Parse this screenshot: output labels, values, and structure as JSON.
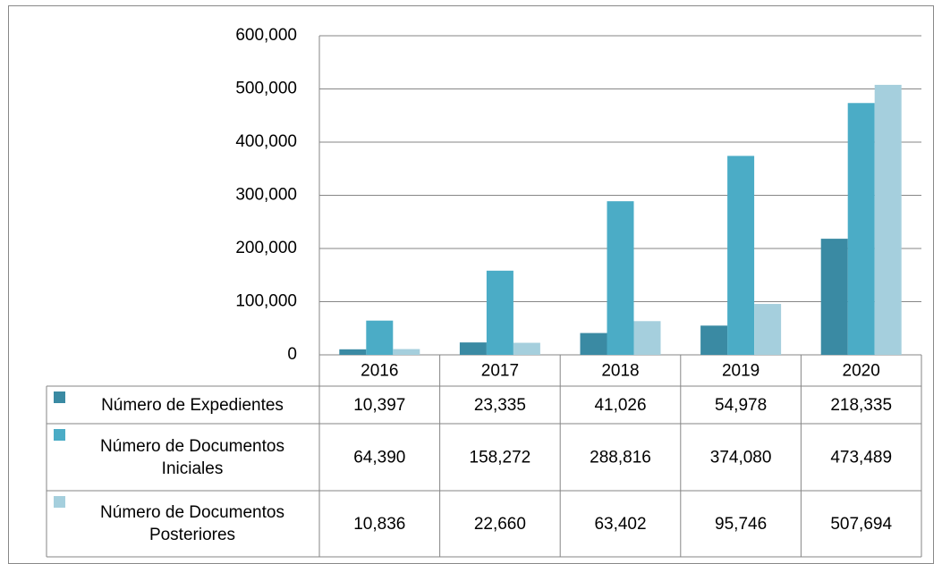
{
  "chart_data": {
    "type": "bar",
    "categories": [
      "2016",
      "2017",
      "2018",
      "2019",
      "2020"
    ],
    "series": [
      {
        "name": "Número de Expedientes",
        "color": "#3a8aa3",
        "values": [
          10397,
          23335,
          41026,
          54978,
          218335
        ],
        "value_labels": [
          "10,397",
          "23,335",
          "41,026",
          "54,978",
          "218,335"
        ]
      },
      {
        "name": "Número de Documentos Iniciales",
        "color": "#4bacc6",
        "values": [
          64390,
          158272,
          288816,
          374080,
          473489
        ],
        "value_labels": [
          "64,390",
          "158,272",
          "288,816",
          "374,080",
          "473,489"
        ]
      },
      {
        "name": "Número de Documentos Posteriores",
        "color": "#a5cfdd",
        "values": [
          10836,
          22660,
          63402,
          95746,
          507694
        ],
        "value_labels": [
          "10,836",
          "22,660",
          "63,402",
          "95,746",
          "507,694"
        ]
      }
    ],
    "ylim": [
      0,
      600000
    ],
    "yticks": [
      0,
      {
        "value": 100000,
        "label": "100,000"
      },
      {
        "value": 200000,
        "label": "200,000"
      },
      {
        "value": 300000,
        "label": "300,000"
      },
      {
        "value": 400000,
        "label": "400,000"
      },
      {
        "value": 500000,
        "label": "500,000"
      },
      {
        "value": 600000,
        "label": "600,000"
      }
    ],
    "grid": true
  }
}
